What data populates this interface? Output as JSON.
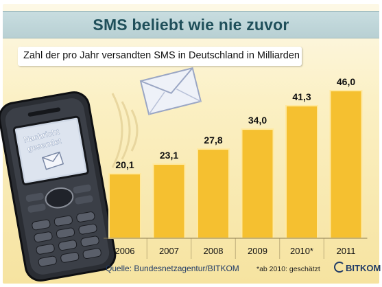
{
  "title": "SMS beliebt wie nie zuvor",
  "subtitle": "Zahl der pro Jahr versandten SMS in Deutschland in Milliarden",
  "phone_screen_text": "Nachricht gesendet",
  "footer": {
    "source": "Quelle: Bundesnetzagentur/BITKOM",
    "note": "*ab 2010: geschätzt",
    "logo": "BITKOM"
  },
  "colors": {
    "bar": "#f5c030",
    "bar_edge": "#ffe9a0",
    "title_text": "#1f4f5a",
    "title_band": "#c3d9dc"
  },
  "icons": [
    "phone-icon",
    "envelope-icon",
    "signal-waves-icon",
    "bitkom-logo"
  ],
  "chart_data": {
    "type": "bar",
    "title": "SMS beliebt wie nie zuvor",
    "subtitle": "Zahl der pro Jahr versandten SMS in Deutschland in Milliarden",
    "categories": [
      "2006",
      "2007",
      "2008",
      "2009",
      "2010*",
      "2011"
    ],
    "values": [
      20.1,
      23.1,
      27.8,
      34.0,
      41.3,
      46.0
    ],
    "value_labels": [
      "20,1",
      "23,1",
      "27,8",
      "34,0",
      "41,3",
      "46,0"
    ],
    "xlabel": "",
    "ylabel": "",
    "ylim": [
      0,
      46
    ],
    "grid": false,
    "legend": "none"
  }
}
